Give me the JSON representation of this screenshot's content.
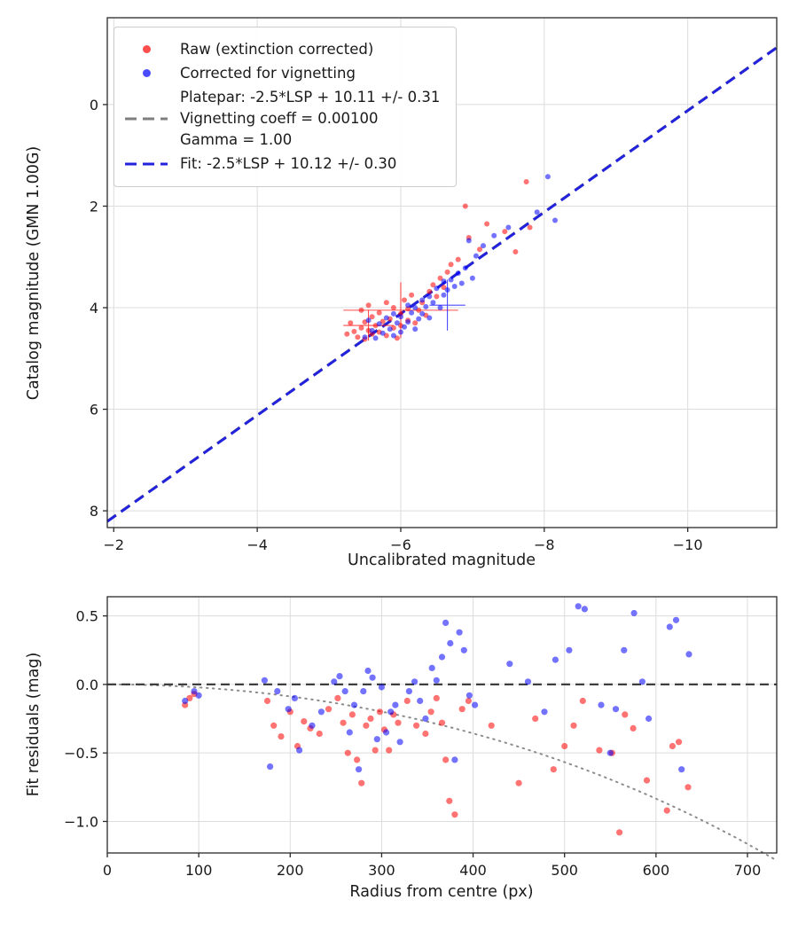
{
  "figure": {
    "background": "#ffffff"
  },
  "chart_data": [
    {
      "type": "scatter",
      "title": "",
      "xlabel": "Uncalibrated magnitude",
      "ylabel": "Catalog magnitude (GMN 1.00G)",
      "xlim": [
        -1.91,
        -11.24
      ],
      "ylim": [
        8.33,
        -1.71
      ],
      "x_inverted": true,
      "y_inverted": true,
      "grid": true,
      "xticks": {
        "values": [
          -2,
          -4,
          -6,
          -8,
          -10
        ],
        "labels": [
          "−2",
          "−4",
          "−6",
          "−8",
          "−10"
        ]
      },
      "yticks": {
        "values": [
          0,
          2,
          4,
          6,
          8
        ],
        "labels": [
          "0",
          "2",
          "4",
          "6",
          "8"
        ]
      },
      "legend": {
        "position": "upper left",
        "entries": [
          {
            "type": "marker",
            "color": "#ff0000",
            "label": "Raw (extinction corrected)"
          },
          {
            "type": "marker",
            "color": "#0000ff",
            "label": "Corrected for vignetting"
          },
          {
            "type": "dashed-line",
            "color": "#7f7f7f",
            "label_lines": [
              "Platepar: -2.5*LSP + 10.11 +/- 0.31",
              "Vignetting coeff = 0.00100",
              "Gamma = 1.00"
            ]
          },
          {
            "type": "dashed-line",
            "color": "#2222dd",
            "label": "Fit: -2.5*LSP + 10.12 +/- 0.30"
          }
        ]
      },
      "lines": [
        {
          "name": "platepar-line",
          "color": "#7f7f7f",
          "slope": 1,
          "intercept": 10.11,
          "dash": [
            12,
            7
          ],
          "width": 2.6
        },
        {
          "name": "fit-line",
          "color": "#2222dd",
          "slope": 1,
          "intercept": 10.12,
          "dash": [
            12,
            7
          ],
          "width": 3
        }
      ],
      "errorbars": [
        {
          "color": "#ff0000",
          "x": -6.0,
          "y": 4.05,
          "xerr": 0.8,
          "yerr": 0.55
        },
        {
          "color": "#ff0000",
          "x": -5.55,
          "y": 4.35,
          "xerr": 0.35,
          "yerr": 0.3
        },
        {
          "color": "#0000ff",
          "x": -6.65,
          "y": 3.95,
          "xerr": 0.25,
          "yerr": 0.5
        }
      ],
      "series": [
        {
          "key": "raw-series",
          "name": "Raw (extinction corrected)",
          "color": "#ff0000",
          "opacity": 0.55,
          "points": [
            [
              -5.25,
              4.52
            ],
            [
              -5.3,
              4.3
            ],
            [
              -5.35,
              4.47
            ],
            [
              -5.4,
              4.58
            ],
            [
              -5.45,
              4.05
            ],
            [
              -5.45,
              4.4
            ],
            [
              -5.5,
              4.62
            ],
            [
              -5.5,
              4.28
            ],
            [
              -5.55,
              3.95
            ],
            [
              -5.55,
              4.45
            ],
            [
              -5.6,
              4.18
            ],
            [
              -5.6,
              4.52
            ],
            [
              -5.65,
              4.35
            ],
            [
              -5.7,
              4.1
            ],
            [
              -5.7,
              4.48
            ],
            [
              -5.75,
              4.27
            ],
            [
              -5.8,
              3.9
            ],
            [
              -5.8,
              4.55
            ],
            [
              -5.85,
              4.22
            ],
            [
              -5.9,
              4.0
            ],
            [
              -5.9,
              4.4
            ],
            [
              -5.95,
              4.6
            ],
            [
              -6.0,
              4.12
            ],
            [
              -6.0,
              4.35
            ],
            [
              -6.05,
              3.85
            ],
            [
              -6.1,
              4.25
            ],
            [
              -6.1,
              4.02
            ],
            [
              -6.15,
              3.75
            ],
            [
              -6.2,
              4.3
            ],
            [
              -6.25,
              4.05
            ],
            [
              -6.3,
              3.9
            ],
            [
              -6.35,
              4.15
            ],
            [
              -6.4,
              3.68
            ],
            [
              -6.45,
              3.55
            ],
            [
              -6.5,
              3.78
            ],
            [
              -6.55,
              3.42
            ],
            [
              -6.6,
              3.6
            ],
            [
              -6.65,
              3.3
            ],
            [
              -6.7,
              3.15
            ],
            [
              -6.8,
              3.05
            ],
            [
              -6.9,
              2.0
            ],
            [
              -6.95,
              2.62
            ],
            [
              -7.1,
              2.85
            ],
            [
              -7.2,
              2.35
            ],
            [
              -7.45,
              2.5
            ],
            [
              -7.6,
              2.9
            ],
            [
              -7.75,
              1.52
            ],
            [
              -7.8,
              2.42
            ]
          ]
        },
        {
          "key": "vignetting-series",
          "name": "Corrected for vignetting",
          "color": "#0000ff",
          "opacity": 0.55,
          "points": [
            [
              -5.5,
              4.58
            ],
            [
              -5.55,
              4.25
            ],
            [
              -5.6,
              4.45
            ],
            [
              -5.65,
              4.6
            ],
            [
              -5.7,
              4.32
            ],
            [
              -5.75,
              4.5
            ],
            [
              -5.8,
              4.2
            ],
            [
              -5.85,
              4.42
            ],
            [
              -5.9,
              4.12
            ],
            [
              -5.9,
              4.55
            ],
            [
              -5.95,
              4.3
            ],
            [
              -6.0,
              4.48
            ],
            [
              -6.0,
              4.18
            ],
            [
              -6.05,
              4.38
            ],
            [
              -6.1,
              3.95
            ],
            [
              -6.1,
              4.28
            ],
            [
              -6.15,
              4.1
            ],
            [
              -6.2,
              4.42
            ],
            [
              -6.2,
              4.0
            ],
            [
              -6.25,
              4.22
            ],
            [
              -6.3,
              3.85
            ],
            [
              -6.3,
              4.12
            ],
            [
              -6.35,
              3.98
            ],
            [
              -6.4,
              4.2
            ],
            [
              -6.4,
              3.78
            ],
            [
              -6.45,
              3.9
            ],
            [
              -6.5,
              3.62
            ],
            [
              -6.55,
              4.0
            ],
            [
              -6.6,
              3.48
            ],
            [
              -6.6,
              3.75
            ],
            [
              -6.65,
              3.65
            ],
            [
              -6.7,
              3.45
            ],
            [
              -6.75,
              3.58
            ],
            [
              -6.8,
              3.32
            ],
            [
              -6.85,
              3.52
            ],
            [
              -6.9,
              3.22
            ],
            [
              -6.95,
              2.68
            ],
            [
              -7.0,
              3.42
            ],
            [
              -7.05,
              2.98
            ],
            [
              -7.15,
              2.78
            ],
            [
              -7.3,
              2.58
            ],
            [
              -7.5,
              2.42
            ],
            [
              -7.9,
              2.12
            ],
            [
              -8.05,
              1.42
            ],
            [
              -8.15,
              2.28
            ]
          ]
        }
      ]
    },
    {
      "type": "scatter",
      "title": "",
      "xlabel": "Radius from centre (px)",
      "ylabel": "Fit residuals (mag)",
      "xlim": [
        0,
        732
      ],
      "ylim": [
        -1.23,
        0.64
      ],
      "grid": true,
      "xticks": {
        "values": [
          0,
          100,
          200,
          300,
          400,
          500,
          600,
          700
        ],
        "labels": [
          "0",
          "100",
          "200",
          "300",
          "400",
          "500",
          "600",
          "700"
        ]
      },
      "yticks": {
        "values": [
          0.5,
          0.0,
          -0.5,
          -1.0
        ],
        "labels": [
          "0.5",
          "0.0",
          "−0.5",
          "−1.0"
        ]
      },
      "zero_line": {
        "color": "#3f3f3f",
        "dash": [
          10,
          6
        ],
        "width": 2.2
      },
      "model_curve": {
        "name": "vignetting-model",
        "color": "#8c8c8c",
        "style": "dotted",
        "k": 0.001,
        "formula": "10*log10(cos(k*r))"
      },
      "series": [
        {
          "key": "raw-residuals",
          "name": "Raw (extinction corrected)",
          "color": "#ff0000",
          "opacity": 0.55,
          "points": [
            [
              85,
              -0.15
            ],
            [
              90,
              -0.1
            ],
            [
              95,
              -0.07
            ],
            [
              175,
              -0.12
            ],
            [
              182,
              -0.3
            ],
            [
              190,
              -0.38
            ],
            [
              200,
              -0.2
            ],
            [
              208,
              -0.45
            ],
            [
              215,
              -0.27
            ],
            [
              222,
              -0.32
            ],
            [
              232,
              -0.36
            ],
            [
              242,
              -0.18
            ],
            [
              252,
              -0.1
            ],
            [
              258,
              -0.28
            ],
            [
              263,
              -0.5
            ],
            [
              268,
              -0.22
            ],
            [
              273,
              -0.55
            ],
            [
              278,
              -0.72
            ],
            [
              283,
              -0.3
            ],
            [
              288,
              -0.25
            ],
            [
              293,
              -0.48
            ],
            [
              298,
              -0.2
            ],
            [
              303,
              -0.33
            ],
            [
              308,
              -0.48
            ],
            [
              313,
              -0.22
            ],
            [
              318,
              -0.28
            ],
            [
              328,
              -0.12
            ],
            [
              338,
              -0.3
            ],
            [
              348,
              -0.36
            ],
            [
              354,
              -0.2
            ],
            [
              360,
              -0.1
            ],
            [
              366,
              -0.28
            ],
            [
              370,
              -0.55
            ],
            [
              374,
              -0.85
            ],
            [
              380,
              -0.95
            ],
            [
              388,
              -0.18
            ],
            [
              395,
              -0.12
            ],
            [
              420,
              -0.3
            ],
            [
              450,
              -0.72
            ],
            [
              468,
              -0.25
            ],
            [
              488,
              -0.62
            ],
            [
              500,
              -0.45
            ],
            [
              510,
              -0.3
            ],
            [
              520,
              -0.12
            ],
            [
              538,
              -0.48
            ],
            [
              552,
              -0.5
            ],
            [
              560,
              -1.08
            ],
            [
              566,
              -0.22
            ],
            [
              575,
              -0.32
            ],
            [
              590,
              -0.7
            ],
            [
              612,
              -0.92
            ],
            [
              618,
              -0.45
            ],
            [
              625,
              -0.42
            ],
            [
              635,
              -0.75
            ]
          ]
        },
        {
          "key": "vignetting-residuals",
          "name": "Corrected for vignetting",
          "color": "#0000ff",
          "opacity": 0.55,
          "points": [
            [
              85,
              -0.12
            ],
            [
              95,
              -0.05
            ],
            [
              100,
              -0.08
            ],
            [
              172,
              0.03
            ],
            [
              178,
              -0.6
            ],
            [
              186,
              -0.05
            ],
            [
              198,
              -0.18
            ],
            [
              205,
              -0.1
            ],
            [
              210,
              -0.48
            ],
            [
              224,
              -0.3
            ],
            [
              234,
              -0.2
            ],
            [
              248,
              0.02
            ],
            [
              254,
              0.06
            ],
            [
              260,
              -0.05
            ],
            [
              265,
              -0.35
            ],
            [
              270,
              -0.15
            ],
            [
              275,
              -0.62
            ],
            [
              280,
              -0.05
            ],
            [
              285,
              0.1
            ],
            [
              290,
              0.05
            ],
            [
              295,
              -0.4
            ],
            [
              300,
              -0.02
            ],
            [
              305,
              -0.35
            ],
            [
              310,
              -0.2
            ],
            [
              315,
              -0.15
            ],
            [
              320,
              -0.42
            ],
            [
              330,
              -0.05
            ],
            [
              336,
              0.02
            ],
            [
              342,
              -0.12
            ],
            [
              348,
              -0.25
            ],
            [
              355,
              0.12
            ],
            [
              360,
              0.03
            ],
            [
              366,
              0.2
            ],
            [
              370,
              0.45
            ],
            [
              375,
              0.3
            ],
            [
              380,
              -0.55
            ],
            [
              385,
              0.38
            ],
            [
              390,
              0.25
            ],
            [
              396,
              -0.08
            ],
            [
              402,
              -0.15
            ],
            [
              440,
              0.15
            ],
            [
              460,
              0.02
            ],
            [
              478,
              -0.2
            ],
            [
              490,
              0.18
            ],
            [
              505,
              0.25
            ],
            [
              515,
              0.57
            ],
            [
              522,
              0.55
            ],
            [
              540,
              -0.15
            ],
            [
              550,
              -0.5
            ],
            [
              556,
              -0.18
            ],
            [
              565,
              0.25
            ],
            [
              576,
              0.52
            ],
            [
              585,
              0.02
            ],
            [
              592,
              -0.25
            ],
            [
              615,
              0.42
            ],
            [
              622,
              0.47
            ],
            [
              628,
              -0.62
            ],
            [
              636,
              0.22
            ]
          ]
        }
      ]
    }
  ]
}
